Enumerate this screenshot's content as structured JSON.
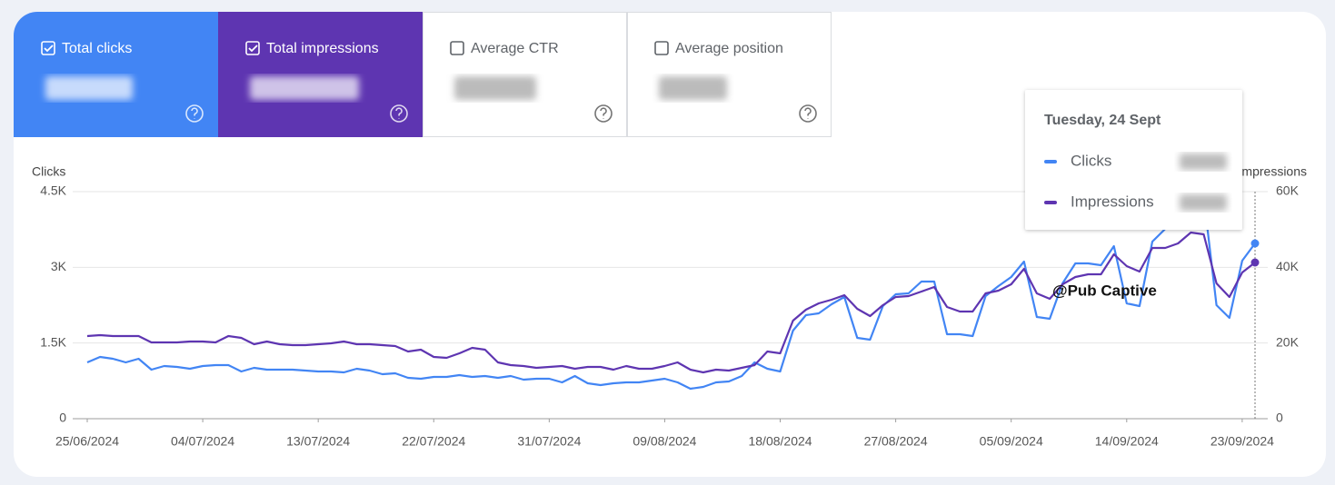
{
  "tabs": [
    {
      "label": "Total clicks"
    },
    {
      "label": "Total impressions"
    },
    {
      "label": "Average CTR"
    },
    {
      "label": "Average position"
    }
  ],
  "tooltip": {
    "date": "Tuesday, 24 Sept"
  },
  "watermark": "@Pub Captive",
  "chart_data": {
    "type": "line",
    "y_label": "Clicks",
    "y2_label": "Impressions",
    "x": [
      "25/06/2024",
      "26/06/2024",
      "27/06/2024",
      "28/06/2024",
      "29/06/2024",
      "30/06/2024",
      "01/07/2024",
      "02/07/2024",
      "03/07/2024",
      "04/07/2024",
      "05/07/2024",
      "06/07/2024",
      "07/07/2024",
      "08/07/2024",
      "09/07/2024",
      "10/07/2024",
      "11/07/2024",
      "12/07/2024",
      "13/07/2024",
      "14/07/2024",
      "15/07/2024",
      "16/07/2024",
      "17/07/2024",
      "18/07/2024",
      "19/07/2024",
      "20/07/2024",
      "21/07/2024",
      "22/07/2024",
      "23/07/2024",
      "24/07/2024",
      "25/07/2024",
      "26/07/2024",
      "27/07/2024",
      "28/07/2024",
      "29/07/2024",
      "30/07/2024",
      "31/07/2024",
      "01/08/2024",
      "02/08/2024",
      "03/08/2024",
      "04/08/2024",
      "05/08/2024",
      "06/08/2024",
      "07/08/2024",
      "08/08/2024",
      "09/08/2024",
      "10/08/2024",
      "11/08/2024",
      "12/08/2024",
      "13/08/2024",
      "14/08/2024",
      "15/08/2024",
      "16/08/2024",
      "17/08/2024",
      "18/08/2024",
      "19/08/2024",
      "20/08/2024",
      "21/08/2024",
      "22/08/2024",
      "23/08/2024",
      "24/08/2024",
      "25/08/2024",
      "26/08/2024",
      "27/08/2024",
      "28/08/2024",
      "29/08/2024",
      "30/08/2024",
      "31/08/2024",
      "01/09/2024",
      "02/09/2024",
      "03/09/2024",
      "04/09/2024",
      "05/09/2024",
      "06/09/2024",
      "07/09/2024",
      "08/09/2024",
      "09/09/2024",
      "10/09/2024",
      "11/09/2024",
      "12/09/2024",
      "13/09/2024",
      "14/09/2024",
      "15/09/2024",
      "16/09/2024",
      "17/09/2024",
      "18/09/2024",
      "19/09/2024",
      "20/09/2024",
      "21/09/2024",
      "22/09/2024",
      "23/09/2024",
      "24/09/2024"
    ],
    "xticks": [
      "25/06/2024",
      "04/07/2024",
      "13/07/2024",
      "22/07/2024",
      "31/07/2024",
      "09/08/2024",
      "18/08/2024",
      "27/08/2024",
      "05/09/2024",
      "14/09/2024",
      "23/09/2024"
    ],
    "series": [
      {
        "name": "Clicks",
        "color": "#4285f4",
        "values": [
          1116,
          1224,
          1188,
          1116,
          1188,
          972,
          1044,
          1026,
          990,
          1044,
          1062,
          1062,
          936,
          1008,
          972,
          972,
          972,
          954,
          936,
          936,
          918,
          990,
          954,
          882,
          900,
          810,
          792,
          828,
          828,
          864,
          828,
          846,
          810,
          846,
          774,
          792,
          792,
          720,
          846,
          702,
          666,
          702,
          720,
          720,
          756,
          792,
          720,
          594,
          630,
          720,
          738,
          846,
          1116,
          990,
          936,
          1746,
          2052,
          2088,
          2268,
          2412,
          1602,
          1566,
          2232,
          2466,
          2484,
          2718,
          2718,
          1674,
          1674,
          1638,
          2430,
          2628,
          2808,
          3114,
          2016,
          1980,
          2682,
          3078,
          3078,
          3042,
          3420,
          2286,
          2232,
          3510,
          3762,
          4068,
          4248,
          4400,
          2250,
          1998,
          3132,
          3474
        ]
      },
      {
        "name": "Impressions",
        "color": "#5e35b1",
        "axis": "y2",
        "values": [
          21840,
          22080,
          21840,
          21840,
          21840,
          20160,
          20160,
          20160,
          20400,
          20400,
          20160,
          21840,
          21360,
          19680,
          20400,
          19680,
          19440,
          19440,
          19680,
          19920,
          20400,
          19680,
          19680,
          19440,
          19200,
          17760,
          18240,
          16320,
          16080,
          17280,
          18720,
          18240,
          14880,
          14160,
          13920,
          13440,
          13680,
          13920,
          13200,
          13680,
          13680,
          12960,
          13920,
          13200,
          13200,
          13920,
          14880,
          12960,
          12240,
          12960,
          12720,
          13440,
          14160,
          17760,
          17280,
          25920,
          28800,
          30480,
          31440,
          32640,
          29040,
          27120,
          30000,
          32160,
          32400,
          33600,
          34800,
          29520,
          28320,
          28320,
          33120,
          33840,
          35520,
          39600,
          33120,
          31680,
          35520,
          37440,
          38160,
          38160,
          43440,
          40320,
          38880,
          45120,
          45120,
          46320,
          49200,
          48720,
          35760,
          32160,
          38640,
          41280
        ]
      }
    ],
    "ylim": [
      0,
      4500
    ],
    "yticks": [
      0,
      {
        "value": 1500,
        "label": "1.5K"
      },
      {
        "value": 3000,
        "label": "3K"
      },
      {
        "value": 4500,
        "label": "4.5K"
      }
    ],
    "y2lim": [
      0,
      60000
    ],
    "y2ticks": [
      0,
      {
        "value": 20000,
        "label": "20K"
      },
      {
        "value": 40000,
        "label": "40K"
      },
      {
        "value": 60000,
        "label": "60K"
      }
    ],
    "grid": true
  }
}
